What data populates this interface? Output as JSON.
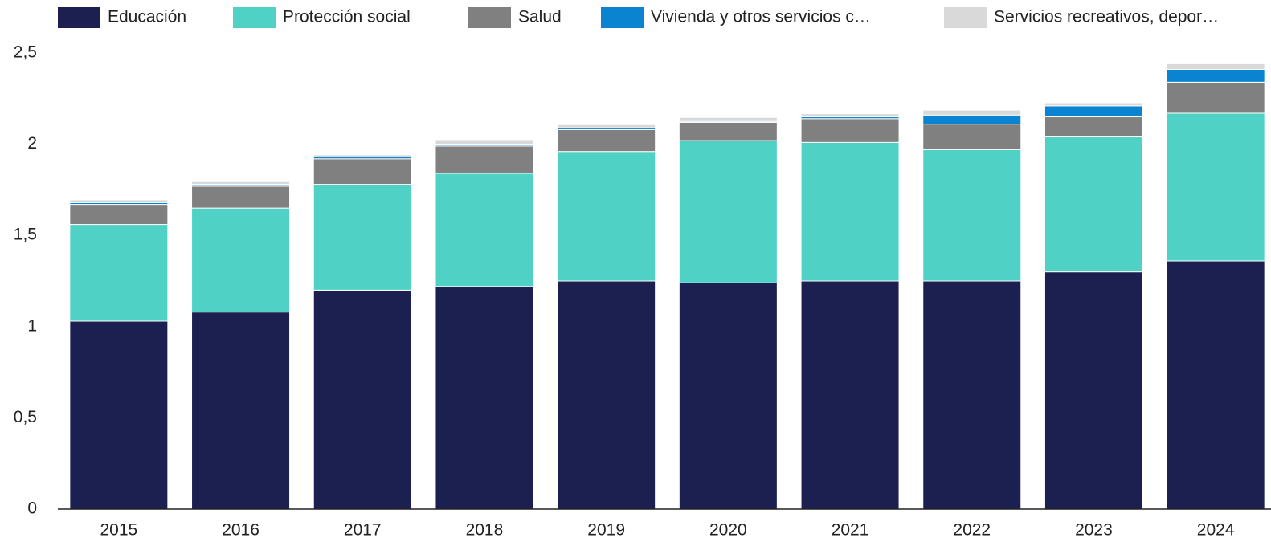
{
  "chart_data": {
    "type": "stacked_bar",
    "categories": [
      "2015",
      "2016",
      "2017",
      "2018",
      "2019",
      "2020",
      "2021",
      "2022",
      "2023",
      "2024"
    ],
    "series": [
      {
        "name": "Educación",
        "color": "#1b2050",
        "values": [
          1.03,
          1.08,
          1.2,
          1.22,
          1.25,
          1.24,
          1.25,
          1.25,
          1.3,
          1.36
        ]
      },
      {
        "name": "Protección social",
        "color": "#4fd1c5",
        "values": [
          0.53,
          0.57,
          0.58,
          0.62,
          0.71,
          0.78,
          0.76,
          0.72,
          0.74,
          0.81
        ]
      },
      {
        "name": "Salud",
        "color": "#808080",
        "values": [
          0.11,
          0.12,
          0.14,
          0.15,
          0.12,
          0.1,
          0.13,
          0.14,
          0.11,
          0.17
        ]
      },
      {
        "name": "Vivienda y otros servicios c…",
        "color": "#0a84d0",
        "values": [
          0.01,
          0.01,
          0.01,
          0.01,
          0.01,
          0.005,
          0.01,
          0.05,
          0.06,
          0.07
        ]
      },
      {
        "name": "Servicios recreativos, depor…",
        "color": "#d9d9d9",
        "values": [
          0.015,
          0.015,
          0.012,
          0.025,
          0.017,
          0.022,
          0.017,
          0.027,
          0.017,
          0.031
        ]
      }
    ],
    "ylim": [
      0,
      2.5
    ],
    "yticks": [
      0,
      {
        "value": 0.5,
        "label": "0,5"
      },
      1,
      {
        "value": 1.5,
        "label": "1,5"
      },
      2,
      {
        "value": 2.5,
        "label": "2,5"
      }
    ],
    "grid": false
  }
}
